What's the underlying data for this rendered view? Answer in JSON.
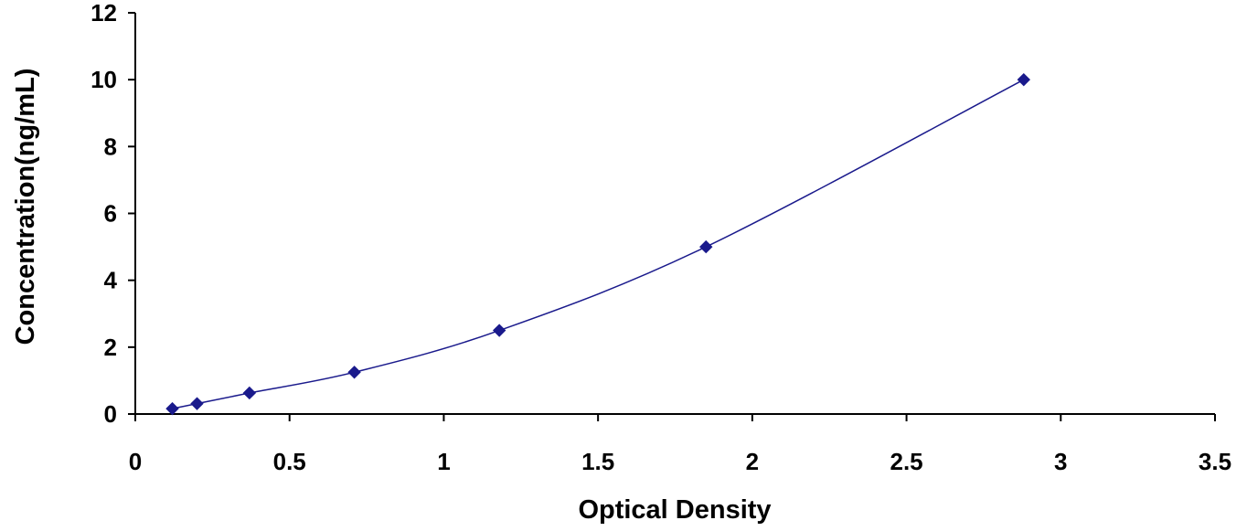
{
  "chart_data": {
    "type": "scatter",
    "title": "",
    "xlabel": "Optical Density",
    "ylabel": "Concentration(ng/mL)",
    "xlim": [
      0,
      3.5
    ],
    "ylim": [
      0,
      12
    ],
    "x_ticks": [
      0,
      0.5,
      1,
      1.5,
      2,
      2.5,
      3,
      3.5
    ],
    "x_tick_labels": [
      "0",
      "0.5",
      "1",
      "1.5",
      "2",
      "2.5",
      "3",
      "3.5"
    ],
    "y_ticks": [
      0,
      2,
      4,
      6,
      8,
      10,
      12
    ],
    "y_tick_labels": [
      "0",
      "2",
      "4",
      "6",
      "8",
      "10",
      "12"
    ],
    "grid": false,
    "legend": "none",
    "series": [
      {
        "marker": "diamond",
        "color": "#1a1a8c",
        "points": [
          {
            "x": 0.12,
            "y": 0.16
          },
          {
            "x": 0.2,
            "y": 0.31
          },
          {
            "x": 0.37,
            "y": 0.63
          },
          {
            "x": 0.71,
            "y": 1.25
          },
          {
            "x": 1.18,
            "y": 2.5
          },
          {
            "x": 1.85,
            "y": 5
          },
          {
            "x": 2.88,
            "y": 10
          }
        ],
        "trendline": "smooth"
      }
    ]
  }
}
